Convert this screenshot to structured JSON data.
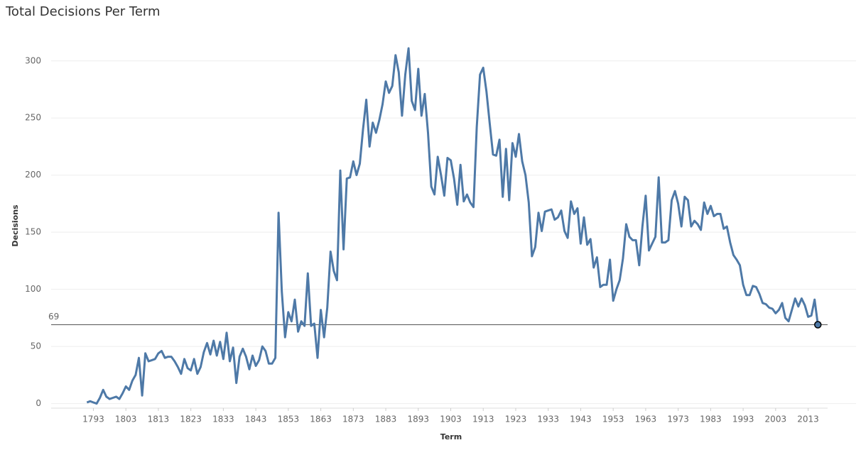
{
  "chart_data": {
    "type": "line",
    "title": "Total Decisions Per Term",
    "x_label": "Term",
    "y_label": "Decisions",
    "x": [
      1791,
      1792,
      1793,
      1794,
      1795,
      1796,
      1797,
      1798,
      1799,
      1800,
      1801,
      1802,
      1803,
      1804,
      1805,
      1806,
      1807,
      1808,
      1809,
      1810,
      1811,
      1812,
      1813,
      1814,
      1815,
      1816,
      1817,
      1818,
      1819,
      1820,
      1821,
      1822,
      1823,
      1824,
      1825,
      1826,
      1827,
      1828,
      1829,
      1830,
      1831,
      1832,
      1833,
      1834,
      1835,
      1836,
      1837,
      1838,
      1839,
      1840,
      1841,
      1842,
      1843,
      1844,
      1845,
      1846,
      1847,
      1848,
      1849,
      1850,
      1851,
      1852,
      1853,
      1854,
      1855,
      1856,
      1857,
      1858,
      1859,
      1860,
      1861,
      1862,
      1863,
      1864,
      1865,
      1866,
      1867,
      1868,
      1869,
      1870,
      1871,
      1872,
      1873,
      1874,
      1875,
      1876,
      1877,
      1878,
      1879,
      1880,
      1881,
      1882,
      1883,
      1884,
      1885,
      1886,
      1887,
      1888,
      1889,
      1890,
      1891,
      1892,
      1893,
      1894,
      1895,
      1896,
      1897,
      1898,
      1899,
      1900,
      1901,
      1902,
      1903,
      1904,
      1905,
      1906,
      1907,
      1908,
      1909,
      1910,
      1911,
      1912,
      1913,
      1914,
      1915,
      1916,
      1917,
      1918,
      1919,
      1920,
      1921,
      1922,
      1923,
      1924,
      1925,
      1926,
      1927,
      1928,
      1929,
      1930,
      1931,
      1932,
      1933,
      1934,
      1935,
      1936,
      1937,
      1938,
      1939,
      1940,
      1941,
      1942,
      1943,
      1944,
      1945,
      1946,
      1947,
      1948,
      1949,
      1950,
      1951,
      1952,
      1953,
      1954,
      1955,
      1956,
      1957,
      1958,
      1959,
      1960,
      1961,
      1962,
      1963,
      1964,
      1965,
      1966,
      1967,
      1968,
      1969,
      1970,
      1971,
      1972,
      1973,
      1974,
      1975,
      1976,
      1977,
      1978,
      1979,
      1980,
      1981,
      1982,
      1983,
      1984,
      1985,
      1986,
      1987,
      1988,
      1989,
      1990,
      1991,
      1992,
      1993,
      1994,
      1995,
      1996,
      1997,
      1998,
      1999,
      2000,
      2001,
      2002,
      2003,
      2004,
      2005,
      2006,
      2007,
      2008,
      2009,
      2010,
      2011,
      2012,
      2013,
      2014,
      2015,
      2016
    ],
    "series": [
      {
        "name": "Decisions",
        "color": "#4e79a7",
        "values": [
          1,
          2,
          1,
          0,
          5,
          12,
          6,
          4,
          5,
          6,
          4,
          9,
          15,
          12,
          20,
          25,
          40,
          7,
          44,
          37,
          38,
          39,
          44,
          46,
          40,
          41,
          41,
          37,
          32,
          26,
          39,
          31,
          29,
          39,
          26,
          32,
          45,
          53,
          43,
          55,
          42,
          54,
          39,
          62,
          37,
          49,
          18,
          41,
          48,
          41,
          30,
          42,
          33,
          38,
          50,
          46,
          35,
          35,
          40,
          167,
          98,
          58,
          80,
          72,
          91,
          63,
          72,
          68,
          114,
          68,
          70,
          40,
          82,
          58,
          84,
          133,
          116,
          108,
          204,
          135,
          197,
          198,
          212,
          200,
          210,
          240,
          266,
          225,
          246,
          237,
          248,
          262,
          282,
          272,
          278,
          305,
          290,
          252,
          288,
          311,
          265,
          257,
          293,
          252,
          271,
          237,
          190,
          183,
          216,
          200,
          182,
          215,
          213,
          197,
          174,
          209,
          177,
          183,
          176,
          172,
          242,
          288,
          294,
          273,
          245,
          218,
          217,
          231,
          181,
          223,
          178,
          228,
          216,
          236,
          212,
          200,
          176,
          129,
          137,
          167,
          151,
          168,
          169,
          170,
          161,
          163,
          169,
          151,
          145,
          177,
          166,
          171,
          140,
          163,
          139,
          144,
          119,
          128,
          102,
          104,
          104,
          126,
          90,
          100,
          108,
          127,
          157,
          146,
          143,
          143,
          121,
          155,
          182,
          134,
          140,
          146,
          198,
          141,
          141,
          143,
          178,
          186,
          175,
          155,
          181,
          178,
          155,
          160,
          157,
          152,
          176,
          166,
          173,
          164,
          166,
          166,
          153,
          155,
          141,
          130,
          126,
          121,
          104,
          95,
          95,
          103,
          102,
          96,
          88,
          87,
          84,
          83,
          79,
          82,
          88,
          75,
          72,
          82,
          92,
          85,
          92,
          86,
          76,
          77,
          91,
          69
        ]
      }
    ],
    "reference_line": 69,
    "xlim": [
      1780,
      2019
    ],
    "ylim": [
      -4,
      316
    ],
    "xticks": [
      1793,
      1803,
      1813,
      1823,
      1833,
      1843,
      1853,
      1863,
      1873,
      1883,
      1893,
      1903,
      1913,
      1923,
      1933,
      1943,
      1953,
      1963,
      1973,
      1983,
      1993,
      2003,
      2013
    ],
    "yticks": [
      0,
      50,
      100,
      150,
      200,
      250,
      300
    ],
    "grid": true
  }
}
